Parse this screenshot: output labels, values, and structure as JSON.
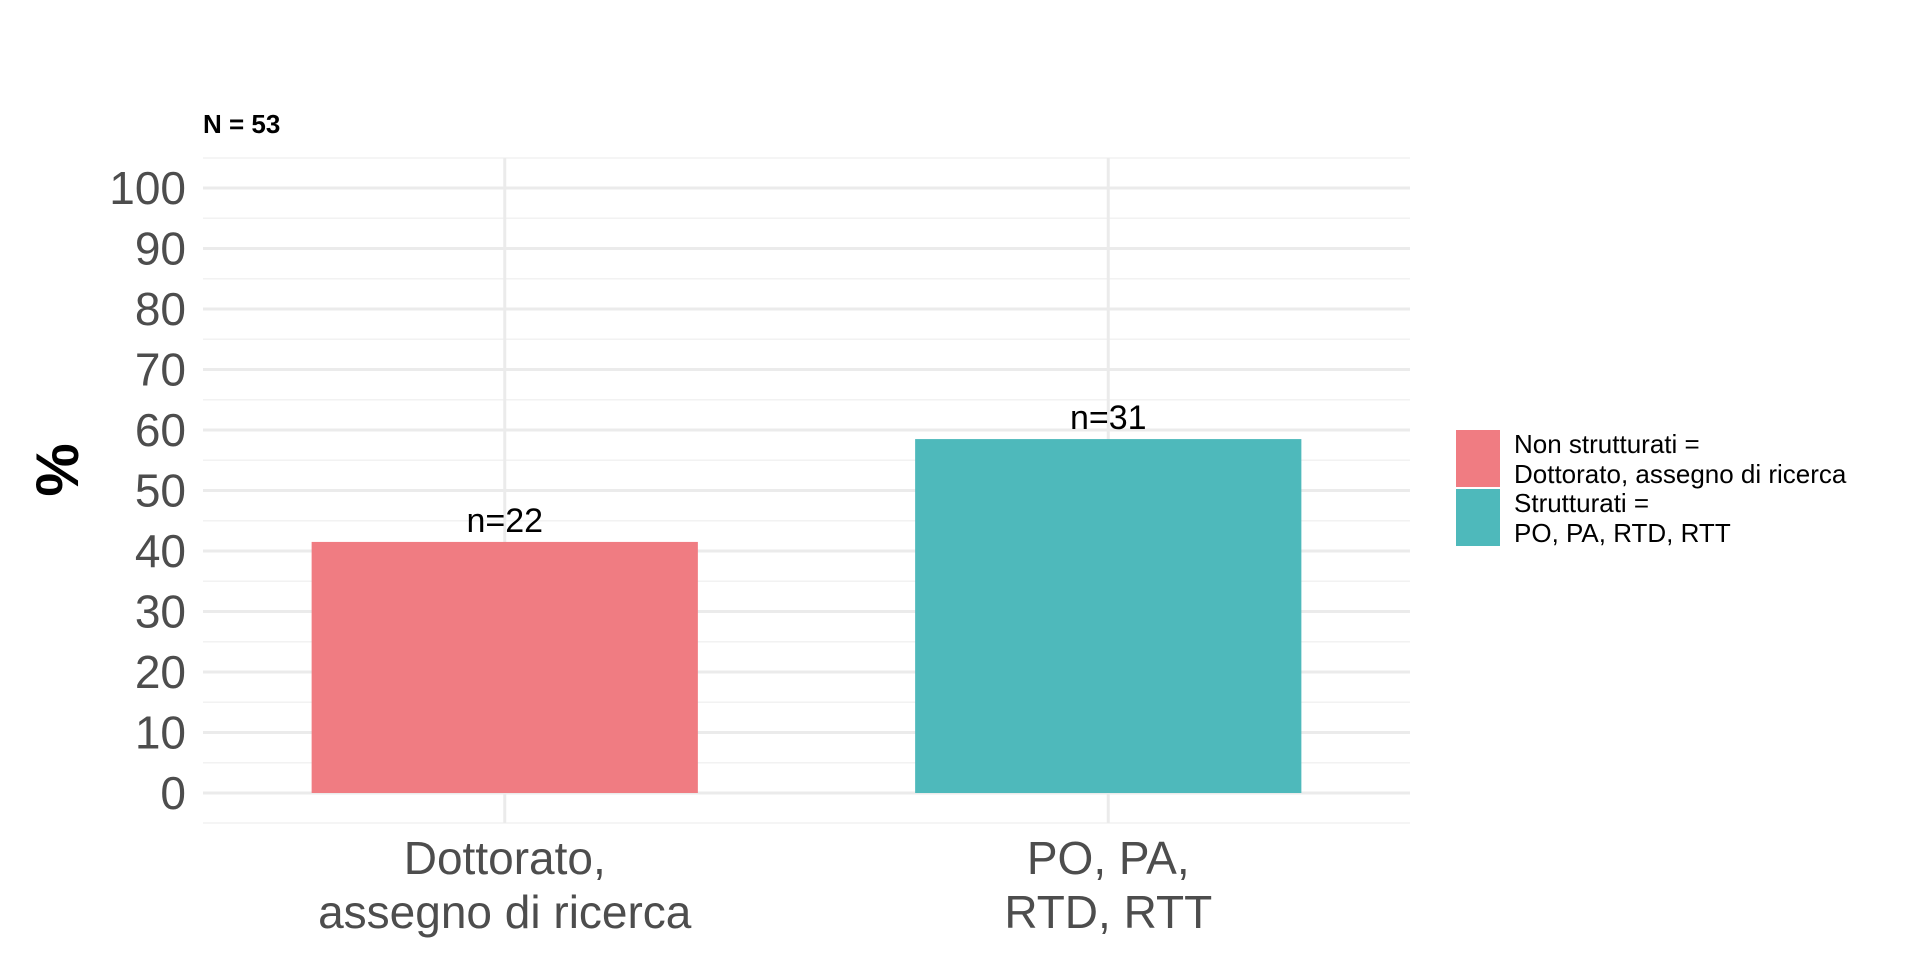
{
  "chart_data": {
    "type": "bar",
    "subtitle": "N = 53",
    "xlabel": "",
    "ylabel": "%",
    "ylim": [
      0,
      100
    ],
    "y_ticks": [
      0,
      10,
      20,
      30,
      40,
      50,
      60,
      70,
      80,
      90,
      100
    ],
    "categories": [
      [
        "Dottorato,",
        "assegno di ricerca"
      ],
      [
        "PO, PA,",
        "RTD, RTT"
      ]
    ],
    "values": [
      41.5,
      58.5
    ],
    "bar_labels": [
      "n=22",
      "n=31"
    ],
    "colors": [
      "#F07C82",
      "#4EB9BB"
    ],
    "grid": true,
    "legend": {
      "position": "right",
      "entries": [
        [
          "Non strutturati =",
          "Dottorato, assegno di ricerca"
        ],
        [
          "Strutturati =",
          "PO, PA, RTD, RTT"
        ]
      ]
    }
  }
}
